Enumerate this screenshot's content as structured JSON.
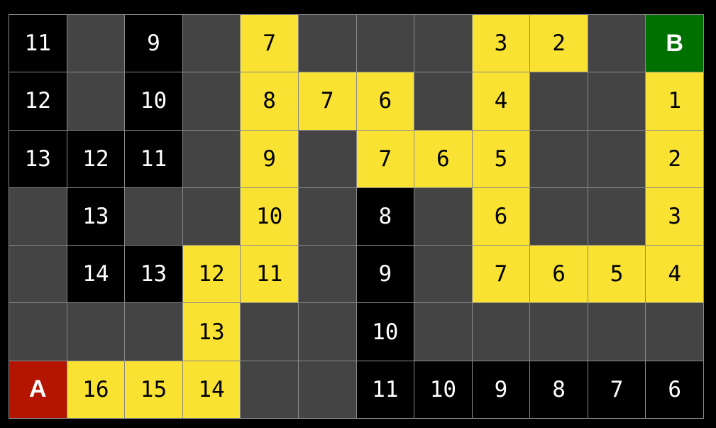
{
  "colors": {
    "wall": "#444444",
    "visited": "#000000",
    "path": "#f9e231",
    "start": "#b31500",
    "goal": "#007000"
  },
  "grid": [
    [
      {
        "t": "visited",
        "v": "11"
      },
      {
        "t": "empty",
        "v": ""
      },
      {
        "t": "visited",
        "v": "9"
      },
      {
        "t": "empty",
        "v": ""
      },
      {
        "t": "path",
        "v": "7"
      },
      {
        "t": "empty",
        "v": ""
      },
      {
        "t": "empty",
        "v": ""
      },
      {
        "t": "empty",
        "v": ""
      },
      {
        "t": "path",
        "v": "3"
      },
      {
        "t": "path",
        "v": "2"
      },
      {
        "t": "empty",
        "v": ""
      },
      {
        "t": "goal",
        "v": "B"
      }
    ],
    [
      {
        "t": "visited",
        "v": "12"
      },
      {
        "t": "empty",
        "v": ""
      },
      {
        "t": "visited",
        "v": "10"
      },
      {
        "t": "empty",
        "v": ""
      },
      {
        "t": "path",
        "v": "8"
      },
      {
        "t": "path",
        "v": "7"
      },
      {
        "t": "path",
        "v": "6"
      },
      {
        "t": "empty",
        "v": ""
      },
      {
        "t": "path",
        "v": "4"
      },
      {
        "t": "empty",
        "v": ""
      },
      {
        "t": "empty",
        "v": ""
      },
      {
        "t": "path",
        "v": "1"
      }
    ],
    [
      {
        "t": "visited",
        "v": "13"
      },
      {
        "t": "visited",
        "v": "12"
      },
      {
        "t": "visited",
        "v": "11"
      },
      {
        "t": "empty",
        "v": ""
      },
      {
        "t": "path",
        "v": "9"
      },
      {
        "t": "empty",
        "v": ""
      },
      {
        "t": "path",
        "v": "7"
      },
      {
        "t": "path",
        "v": "6"
      },
      {
        "t": "path",
        "v": "5"
      },
      {
        "t": "empty",
        "v": ""
      },
      {
        "t": "empty",
        "v": ""
      },
      {
        "t": "path",
        "v": "2"
      }
    ],
    [
      {
        "t": "empty",
        "v": ""
      },
      {
        "t": "visited",
        "v": "13"
      },
      {
        "t": "empty",
        "v": ""
      },
      {
        "t": "empty",
        "v": ""
      },
      {
        "t": "path",
        "v": "10"
      },
      {
        "t": "empty",
        "v": ""
      },
      {
        "t": "visited",
        "v": "8"
      },
      {
        "t": "empty",
        "v": ""
      },
      {
        "t": "path",
        "v": "6"
      },
      {
        "t": "empty",
        "v": ""
      },
      {
        "t": "empty",
        "v": ""
      },
      {
        "t": "path",
        "v": "3"
      }
    ],
    [
      {
        "t": "empty",
        "v": ""
      },
      {
        "t": "visited",
        "v": "14"
      },
      {
        "t": "visited",
        "v": "13"
      },
      {
        "t": "path",
        "v": "12"
      },
      {
        "t": "path",
        "v": "11"
      },
      {
        "t": "empty",
        "v": ""
      },
      {
        "t": "visited",
        "v": "9"
      },
      {
        "t": "empty",
        "v": ""
      },
      {
        "t": "path",
        "v": "7"
      },
      {
        "t": "path",
        "v": "6"
      },
      {
        "t": "path",
        "v": "5"
      },
      {
        "t": "path",
        "v": "4"
      }
    ],
    [
      {
        "t": "empty",
        "v": ""
      },
      {
        "t": "empty",
        "v": ""
      },
      {
        "t": "empty",
        "v": ""
      },
      {
        "t": "path",
        "v": "13"
      },
      {
        "t": "empty",
        "v": ""
      },
      {
        "t": "empty",
        "v": ""
      },
      {
        "t": "visited",
        "v": "10"
      },
      {
        "t": "empty",
        "v": ""
      },
      {
        "t": "empty",
        "v": ""
      },
      {
        "t": "empty",
        "v": ""
      },
      {
        "t": "empty",
        "v": ""
      },
      {
        "t": "empty",
        "v": ""
      }
    ],
    [
      {
        "t": "start",
        "v": "A"
      },
      {
        "t": "path",
        "v": "16"
      },
      {
        "t": "path",
        "v": "15"
      },
      {
        "t": "path",
        "v": "14"
      },
      {
        "t": "empty",
        "v": ""
      },
      {
        "t": "empty",
        "v": ""
      },
      {
        "t": "visited",
        "v": "11"
      },
      {
        "t": "visited",
        "v": "10"
      },
      {
        "t": "visited",
        "v": "9"
      },
      {
        "t": "visited",
        "v": "8"
      },
      {
        "t": "visited",
        "v": "7"
      },
      {
        "t": "visited",
        "v": "6"
      }
    ]
  ]
}
